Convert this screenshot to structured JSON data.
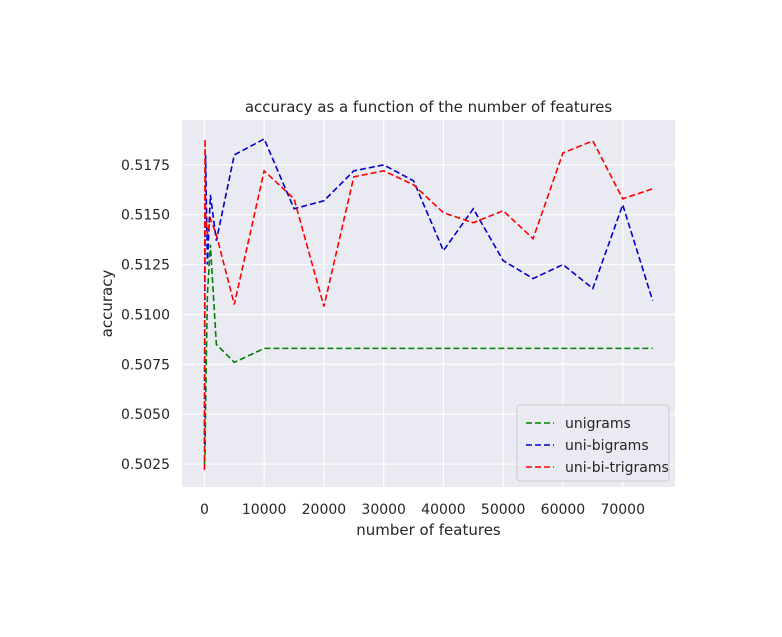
{
  "chart_data": {
    "type": "line",
    "title": "accuracy as a function of the number of features",
    "xlabel": "number of features",
    "ylabel": "accuracy",
    "xlim": [
      -3750,
      78750
    ],
    "ylim": [
      0.50135,
      0.51975
    ],
    "xticks": [
      0,
      10000,
      20000,
      30000,
      40000,
      50000,
      60000,
      70000
    ],
    "yticks": [
      0.5025,
      0.505,
      0.5075,
      0.51,
      0.5125,
      0.515,
      0.5175
    ],
    "xtick_labels": [
      "0",
      "10000",
      "20000",
      "30000",
      "40000",
      "50000",
      "60000",
      "70000"
    ],
    "ytick_labels": [
      "0.5025",
      "0.5050",
      "0.5075",
      "0.5100",
      "0.5125",
      "0.5150",
      "0.5175"
    ],
    "grid": true,
    "background": "#eaeaf2",
    "legend_position": "lower-right",
    "series": [
      {
        "name": "unigrams",
        "color": "#008000",
        "x": [
          10,
          100,
          200,
          500,
          1000,
          2000,
          5000,
          10000,
          15000,
          20000,
          25000,
          30000,
          35000,
          40000,
          45000,
          50000,
          55000,
          60000,
          65000,
          70000,
          75000
        ],
        "y": [
          0.5025,
          0.503,
          0.5055,
          0.511,
          0.5135,
          0.5085,
          0.5076,
          0.5083,
          0.5083,
          0.5083,
          0.5083,
          0.5083,
          0.5083,
          0.5083,
          0.5083,
          0.5083,
          0.5083,
          0.5083,
          0.5083,
          0.5083,
          0.5083
        ]
      },
      {
        "name": "uni-bigrams",
        "color": "#0000cc",
        "x": [
          10,
          100,
          200,
          500,
          1000,
          2000,
          5000,
          10000,
          15000,
          20000,
          25000,
          30000,
          35000,
          40000,
          45000,
          50000,
          55000,
          60000,
          65000,
          70000,
          75000
        ],
        "y": [
          0.5035,
          0.5145,
          0.518,
          0.5125,
          0.516,
          0.5137,
          0.518,
          0.5188,
          0.5153,
          0.5157,
          0.5172,
          0.5175,
          0.5167,
          0.5132,
          0.5153,
          0.5127,
          0.5118,
          0.5125,
          0.5113,
          0.5155,
          0.5107
        ]
      },
      {
        "name": "uni-bi-trigrams",
        "color": "#ff0000",
        "x": [
          10,
          100,
          200,
          500,
          1000,
          2000,
          5000,
          10000,
          15000,
          20000,
          25000,
          30000,
          35000,
          40000,
          45000,
          50000,
          55000,
          60000,
          65000,
          70000,
          75000
        ],
        "y": [
          0.5022,
          0.5188,
          0.515,
          0.514,
          0.5148,
          0.514,
          0.5105,
          0.5172,
          0.5158,
          0.5104,
          0.5169,
          0.5172,
          0.5165,
          0.5151,
          0.5146,
          0.5152,
          0.5138,
          0.5181,
          0.5187,
          0.5158,
          0.5163
        ]
      }
    ]
  }
}
